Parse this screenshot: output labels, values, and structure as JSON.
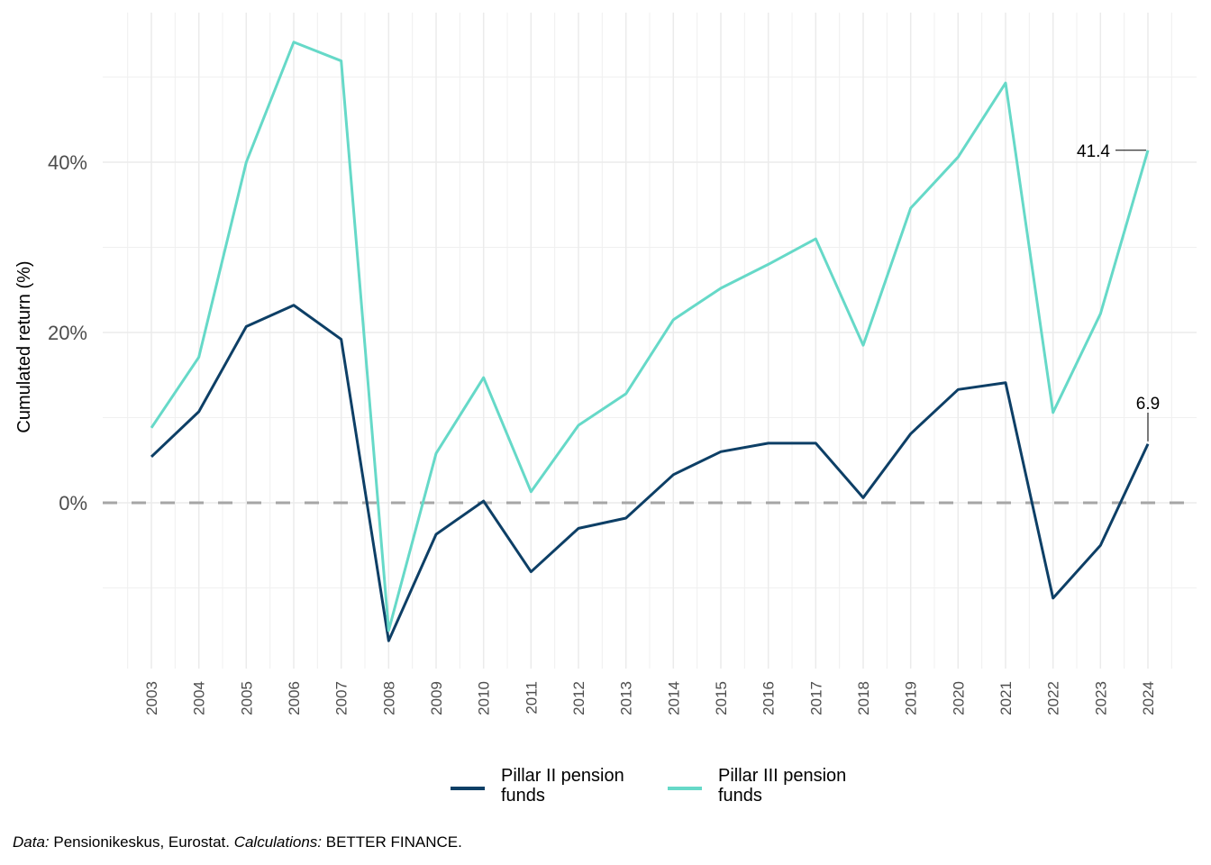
{
  "chart_data": {
    "type": "line",
    "title": "",
    "xlabel": "",
    "ylabel": "Cumulated return  (%)",
    "x": [
      2003,
      2004,
      2005,
      2006,
      2007,
      2008,
      2009,
      2010,
      2011,
      2012,
      2013,
      2014,
      2015,
      2016,
      2017,
      2018,
      2019,
      2020,
      2021,
      2022,
      2023,
      2024
    ],
    "x_tick_labels": [
      "2003",
      "2004",
      "2005",
      "2006",
      "2007",
      "2008",
      "2009",
      "2010",
      "2011",
      "2012",
      "2013",
      "2014",
      "2015",
      "2016",
      "2017",
      "2018",
      "2019",
      "2020",
      "2021",
      "2022",
      "2023",
      "2024"
    ],
    "y_ticks": [
      0,
      20,
      40
    ],
    "y_tick_labels": [
      "0%",
      "20%",
      "40%"
    ],
    "ylim": [
      -19,
      57.5
    ],
    "grid": true,
    "reference_line": {
      "y": 0,
      "style": "dashed",
      "color": "#a6a6a6"
    },
    "series": [
      {
        "name": "Pillar II pension funds",
        "color": "#0d3f66",
        "values": [
          5.4,
          10.7,
          20.7,
          23.2,
          19.2,
          -16.2,
          -3.7,
          0.2,
          -8.1,
          -3.0,
          -1.8,
          3.3,
          6.0,
          7.0,
          7.0,
          0.6,
          8.1,
          13.3,
          14.1,
          -11.2,
          -5.0,
          6.9
        ]
      },
      {
        "name": "Pillar III pension funds",
        "color": "#66d9c8",
        "values": [
          8.8,
          17.1,
          40.0,
          54.1,
          51.9,
          -15.0,
          5.8,
          14.7,
          1.3,
          9.1,
          12.8,
          21.5,
          25.2,
          28.0,
          31.0,
          18.5,
          34.6,
          40.6,
          49.3,
          10.6,
          22.2,
          41.4
        ]
      }
    ],
    "annotations": [
      {
        "series": "Pillar III pension funds",
        "x": 2024,
        "label": "41.4",
        "position": "left"
      },
      {
        "series": "Pillar II pension funds",
        "x": 2024,
        "label": "6.9",
        "position": "above"
      }
    ],
    "legend": {
      "placement": "bottom",
      "labels": [
        "Pillar II pension\nfunds",
        "Pillar III pension\nfunds"
      ]
    }
  },
  "legend": {
    "item1_line1": "Pillar II pension",
    "item1_line2": "funds",
    "item2_line1": "Pillar III pension",
    "item2_line2": "funds"
  },
  "caption": {
    "data_label": "Data:",
    "data_text": " Pensionikeskus, Eurostat. ",
    "calc_label": "Calculations:",
    "calc_text": " BETTER FINANCE."
  }
}
